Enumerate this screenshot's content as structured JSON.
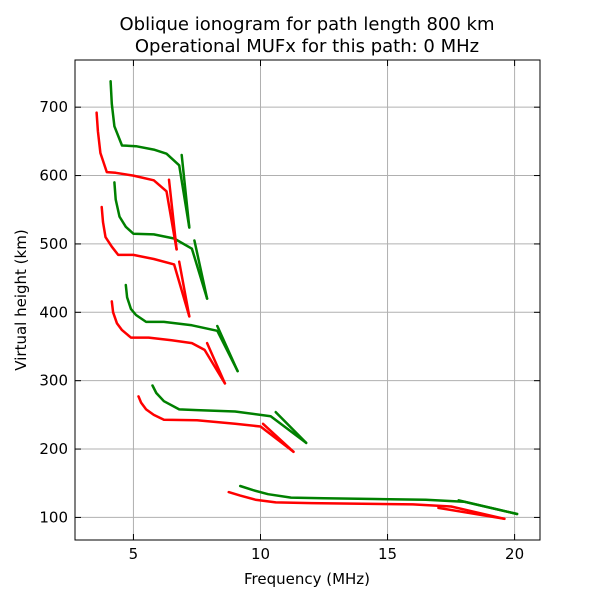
{
  "chart_data": {
    "type": "line",
    "title_line1": "Oblique ionogram for path length 800 km",
    "title_line2": "Operational MUFx for this path: 0 MHz",
    "xlabel": "Frequency (MHz)",
    "ylabel": "Virtual height (km)",
    "xlim": [
      2.7,
      21.0
    ],
    "ylim": [
      67,
      769
    ],
    "xticks": [
      5,
      10,
      15,
      20
    ],
    "yticks": [
      100,
      200,
      300,
      400,
      500,
      600,
      700
    ],
    "grid": true,
    "legend": "none",
    "colors": {
      "red": "#ff0000",
      "green": "#008000"
    },
    "series": [
      {
        "color": "red",
        "x": [
          8.75,
          9.2,
          9.8,
          10.6,
          12.0,
          14.0,
          16.0,
          17.5,
          19.6
        ],
        "y": [
          137,
          132,
          126,
          122,
          121,
          120,
          119,
          116,
          98
        ]
      },
      {
        "color": "red",
        "x": [
          17.0,
          19.6
        ],
        "y": [
          114,
          98
        ]
      },
      {
        "color": "green",
        "x": [
          9.2,
          9.7,
          10.3,
          11.2,
          12.5,
          14.5,
          16.5,
          18.0,
          20.1
        ],
        "y": [
          146,
          140,
          134,
          129,
          128,
          127,
          126,
          123,
          105
        ]
      },
      {
        "color": "green",
        "x": [
          17.8,
          20.1
        ],
        "y": [
          125,
          105
        ]
      },
      {
        "color": "red",
        "x": [
          5.2,
          5.3,
          5.5,
          5.8,
          6.2,
          7.5,
          9.0,
          10.0,
          11.3
        ],
        "y": [
          277,
          268,
          258,
          250,
          243,
          242,
          237,
          233,
          196
        ]
      },
      {
        "color": "red",
        "x": [
          10.1,
          11.3
        ],
        "y": [
          237,
          196
        ]
      },
      {
        "color": "green",
        "x": [
          5.75,
          5.9,
          6.2,
          6.8,
          7.5,
          9.0,
          10.4,
          11.8
        ],
        "y": [
          293,
          282,
          270,
          258,
          257,
          255,
          248,
          209
        ]
      },
      {
        "color": "green",
        "x": [
          10.6,
          11.8
        ],
        "y": [
          254,
          209
        ]
      },
      {
        "color": "red",
        "x": [
          4.15,
          4.2,
          4.35,
          4.55,
          4.9,
          5.6,
          6.5,
          7.3,
          7.8,
          8.6
        ],
        "y": [
          416,
          400,
          384,
          374,
          363,
          363,
          359,
          355,
          345,
          296
        ]
      },
      {
        "color": "red",
        "x": [
          7.9,
          8.6
        ],
        "y": [
          355,
          296
        ]
      },
      {
        "color": "green",
        "x": [
          4.7,
          4.75,
          4.9,
          5.1,
          5.5,
          6.2,
          7.3,
          8.3,
          9.1
        ],
        "y": [
          440,
          422,
          405,
          396,
          386,
          386,
          381,
          373,
          314
        ]
      },
      {
        "color": "green",
        "x": [
          8.3,
          9.1
        ],
        "y": [
          380,
          314
        ]
      },
      {
        "color": "red",
        "x": [
          3.75,
          3.8,
          3.9,
          4.15,
          4.4,
          5.0,
          5.8,
          6.6,
          7.2
        ],
        "y": [
          554,
          532,
          510,
          496,
          484,
          484,
          478,
          470,
          394
        ]
      },
      {
        "color": "red",
        "x": [
          6.8,
          7.2
        ],
        "y": [
          474,
          394
        ]
      },
      {
        "color": "green",
        "x": [
          4.25,
          4.3,
          4.45,
          4.7,
          5.0,
          5.8,
          6.6,
          7.3,
          7.9
        ],
        "y": [
          590,
          565,
          540,
          525,
          515,
          514,
          508,
          493,
          420
        ]
      },
      {
        "color": "green",
        "x": [
          7.4,
          7.9
        ],
        "y": [
          505,
          420
        ]
      },
      {
        "color": "red",
        "x": [
          3.55,
          3.6,
          3.7,
          3.95,
          4.3,
          5.0,
          5.8,
          6.3,
          6.7
        ],
        "y": [
          692,
          665,
          633,
          605,
          604,
          600,
          593,
          577,
          492
        ]
      },
      {
        "color": "red",
        "x": [
          6.4,
          6.7
        ],
        "y": [
          594,
          492
        ]
      },
      {
        "color": "green",
        "x": [
          4.1,
          4.15,
          4.25,
          4.55,
          5.1,
          5.8,
          6.3,
          6.8,
          7.2
        ],
        "y": [
          738,
          705,
          672,
          644,
          643,
          638,
          632,
          615,
          524
        ]
      },
      {
        "color": "green",
        "x": [
          6.9,
          7.2
        ],
        "y": [
          630,
          524
        ]
      }
    ]
  }
}
